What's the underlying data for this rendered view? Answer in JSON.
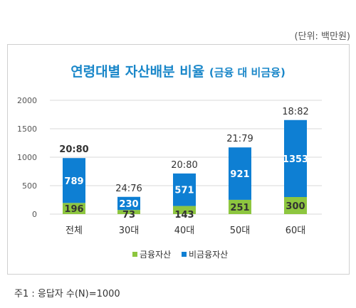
{
  "unit_label": "(단위: 백만원)",
  "title_main": "연령대별 자산배분 비율",
  "title_sub": "(금융 대 비금융)",
  "footnote": "주1 : 응답자 수(N)=1000",
  "colors": {
    "financial": "#8dc63f",
    "non_financial": "#0e7fd3",
    "title": "#1a87c9",
    "grid": "#d9d9d9"
  },
  "chart_data": {
    "type": "bar",
    "stacked": true,
    "categories": [
      "전체",
      "30대",
      "40대",
      "50대",
      "60대"
    ],
    "series": [
      {
        "name": "금융자산",
        "values": [
          196,
          73,
          143,
          251,
          300
        ]
      },
      {
        "name": "비금융자산",
        "values": [
          789,
          230,
          571,
          921,
          1353
        ]
      }
    ],
    "ratio_labels": [
      "20:80",
      "24:76",
      "20:80",
      "21:79",
      "18:82"
    ],
    "yticks": [
      0,
      500,
      1000,
      1500,
      2000
    ],
    "ylim": [
      0,
      2000
    ],
    "grid": true,
    "legend": "bottom"
  }
}
